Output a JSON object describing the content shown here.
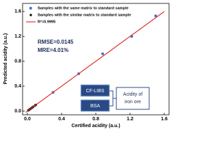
{
  "chart_data": {
    "type": "scatter",
    "x_label": "Certified acidity (a.u.)",
    "y_label": "Predicted acidity (a.u.)",
    "xlim": [
      -0.056,
      1.656
    ],
    "ylim": [
      -0.06,
      1.73
    ],
    "xticks": [
      {
        "value": 0,
        "label": "0.0"
      },
      0.4,
      0.8,
      1.2,
      1.6
    ],
    "yticks": [
      {
        "value": 0,
        "label": "0.0"
      },
      0.4,
      0.8,
      1.2,
      1.6
    ],
    "series": [
      {
        "name": "Samples with the same matrix to standard sample",
        "color": "#3a6fd8",
        "marker": "square",
        "x": [
          0.3,
          0.6,
          0.88,
          1.22,
          1.5
        ],
        "values": [
          0.3,
          0.6,
          0.92,
          1.2,
          1.53
        ]
      },
      {
        "name": "Samples with the similar matrix to standard sample",
        "color": "#111111",
        "marker": "circle",
        "x": [
          0.01,
          0.02,
          0.03,
          0.04,
          0.05,
          0.06,
          0.07,
          0.09,
          0.1
        ],
        "values": [
          0.01,
          0.02,
          0.03,
          0.04,
          0.05,
          0.06,
          0.07,
          0.09,
          0.1
        ]
      },
      {
        "name": "R²=0.9995",
        "color": "#e0302a",
        "marker": "line",
        "x": [
          -0.02,
          1.6
        ],
        "values": [
          -0.02,
          1.6
        ]
      }
    ],
    "annotations": [
      "RMSE=0.0145",
      "MRE=4.01%"
    ],
    "inset": {
      "methods": [
        "CF-LIBS",
        "BSA"
      ],
      "target": "Acidity of iron ore"
    }
  }
}
